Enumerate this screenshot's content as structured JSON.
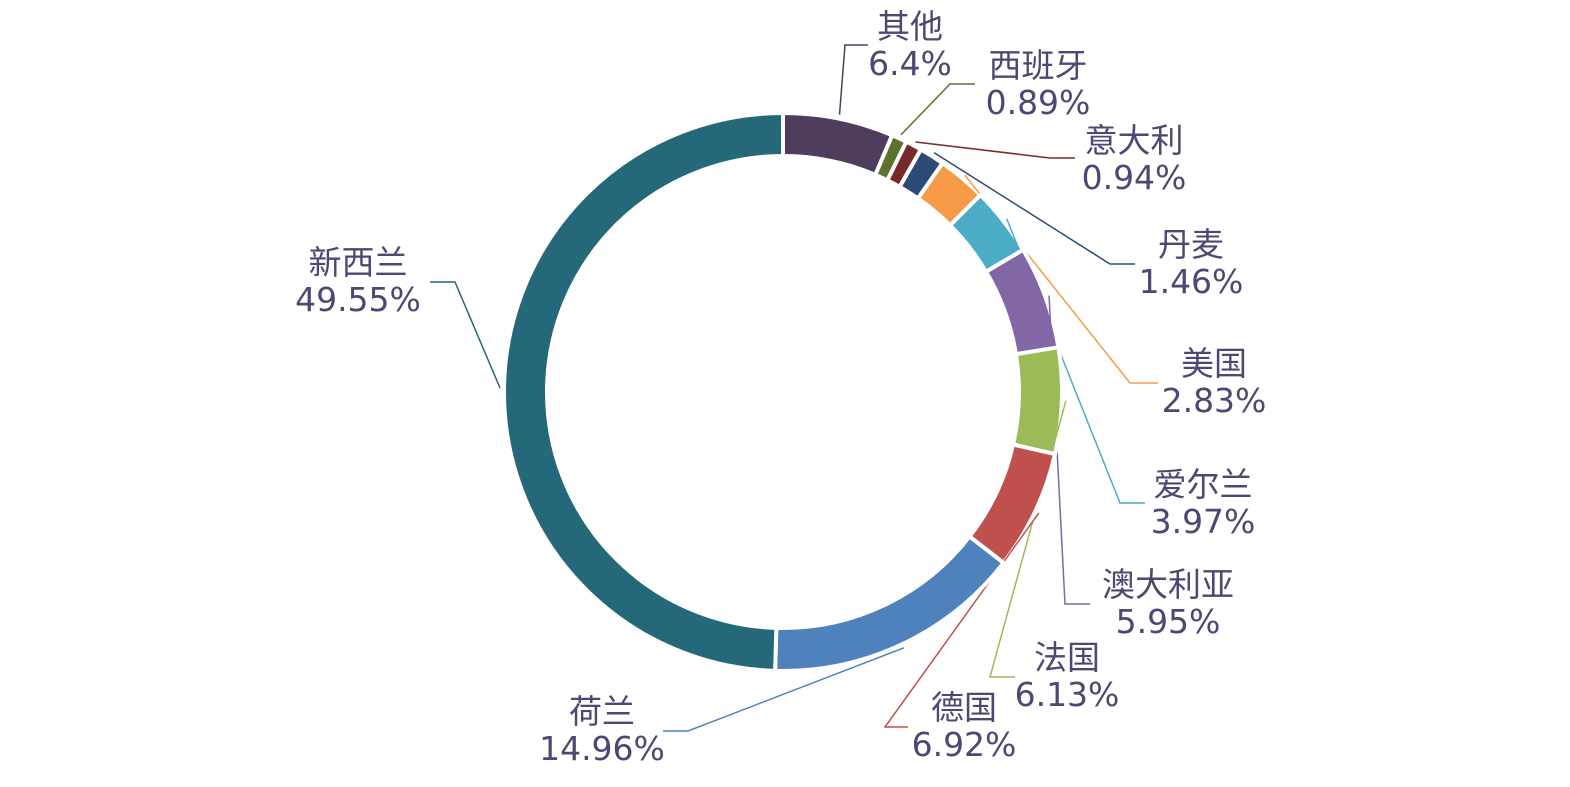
{
  "chart_data": {
    "type": "pie",
    "variant": "donut",
    "legend": "none",
    "start": "top, clockwise",
    "slices": [
      {
        "name": "其他",
        "label": "6.4%",
        "value": 6.4,
        "color": "#4f3d5e"
      },
      {
        "name": "西班牙",
        "label": "0.89%",
        "value": 0.89,
        "color": "#5e722f"
      },
      {
        "name": "意大利",
        "label": "0.94%",
        "value": 0.94,
        "color": "#772a29"
      },
      {
        "name": "丹麦",
        "label": "1.46%",
        "value": 1.46,
        "color": "#2b4b76"
      },
      {
        "name": "美国",
        "label": "2.83%",
        "value": 2.83,
        "color": "#f69a48"
      },
      {
        "name": "爱尔兰",
        "label": "3.97%",
        "value": 3.97,
        "color": "#4aacc5"
      },
      {
        "name": "澳大利亚",
        "label": "5.95%",
        "value": 5.95,
        "color": "#8366a6"
      },
      {
        "name": "法国",
        "label": "6.13%",
        "value": 6.13,
        "color": "#9bbb58"
      },
      {
        "name": "德国",
        "label": "6.92%",
        "value": 6.92,
        "color": "#c0504d"
      },
      {
        "name": "荷兰",
        "label": "14.96%",
        "value": 14.96,
        "color": "#4f81bd"
      },
      {
        "name": "新西兰",
        "label": "49.55%",
        "value": 49.55,
        "color": "#256879"
      }
    ]
  }
}
